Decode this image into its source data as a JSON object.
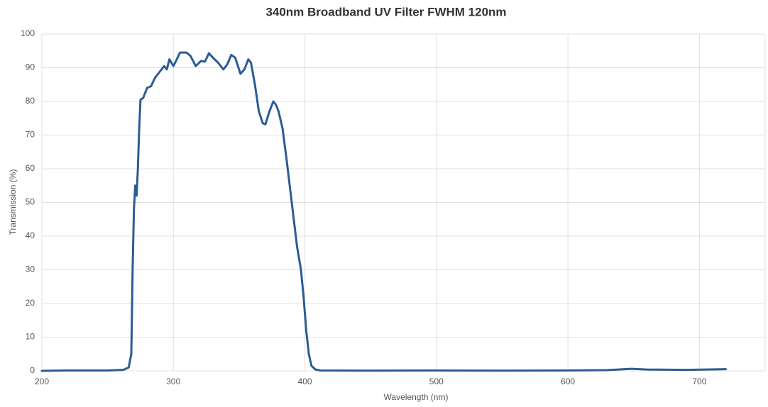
{
  "chart_data": {
    "type": "line",
    "title": "340nm Broadband UV Filter FWHM 120nm",
    "x_label": "Wavelength (nm)",
    "y_label": "Transmission (%)",
    "color": "#2b5c94",
    "grid": true,
    "xlim": [
      200,
      750
    ],
    "xticks": [
      200,
      300,
      400,
      500,
      600,
      700
    ],
    "ylim": [
      0,
      100
    ],
    "yticks": [
      0,
      10,
      20,
      30,
      40,
      50,
      60,
      70,
      80,
      90,
      100
    ],
    "x": [
      200,
      220,
      250,
      262,
      266,
      268,
      269,
      270,
      271,
      272,
      273,
      274,
      275,
      277,
      280,
      283,
      286,
      290,
      293,
      295,
      297,
      300,
      302,
      305,
      310,
      313,
      317,
      321,
      324,
      327,
      330,
      334,
      338,
      341,
      344,
      347,
      351,
      354,
      357,
      359,
      362,
      365,
      368,
      370,
      373,
      376,
      378,
      380,
      383,
      386,
      390,
      394,
      397,
      399,
      401,
      403,
      405,
      408,
      412,
      450,
      500,
      550,
      600,
      630,
      648,
      660,
      690,
      720
    ],
    "values": [
      0,
      0.1,
      0.1,
      0.3,
      1,
      5,
      30,
      48,
      55,
      52,
      60,
      72,
      80.5,
      81,
      84,
      84.5,
      87,
      89,
      90.5,
      89.5,
      92.5,
      90.5,
      92,
      94.5,
      94.5,
      93.5,
      90.5,
      92,
      91.8,
      94.3,
      93,
      91.5,
      89.5,
      91,
      93.8,
      93,
      88.2,
      89.5,
      92.5,
      91.5,
      85,
      77,
      73.5,
      73.2,
      77,
      80,
      79,
      77,
      72,
      63,
      50,
      37,
      30,
      22,
      12,
      5,
      1.5,
      0.4,
      0.1,
      0.05,
      0.1,
      0.05,
      0.1,
      0.2,
      0.6,
      0.4,
      0.3,
      0.5
    ]
  }
}
